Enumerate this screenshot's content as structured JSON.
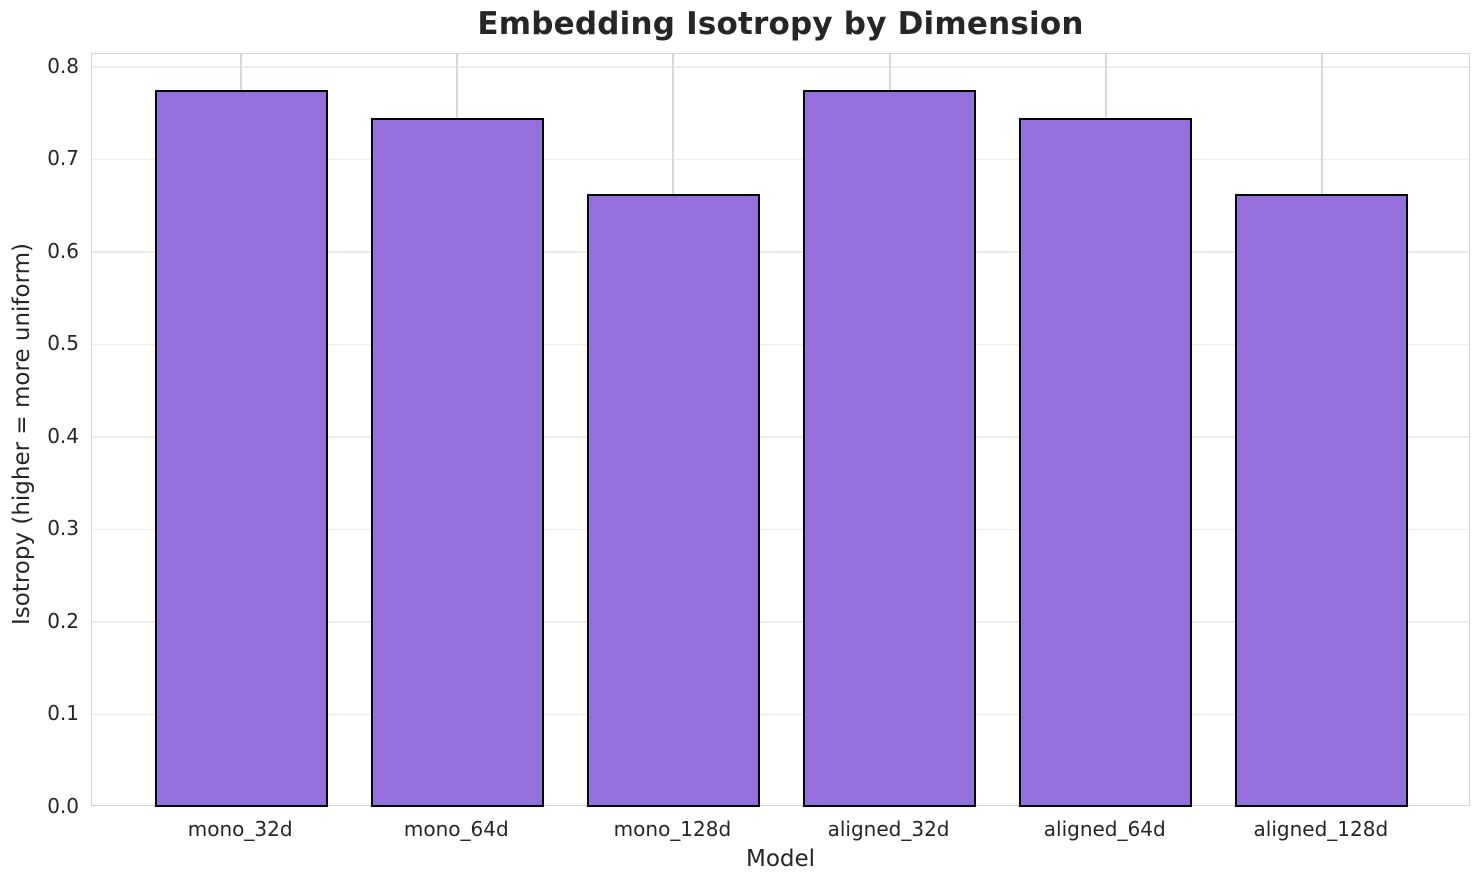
{
  "chart_data": {
    "type": "bar",
    "title": "Embedding Isotropy by Dimension",
    "xlabel": "Model",
    "ylabel": "Isotropy (higher = more uniform)",
    "categories": [
      "mono_32d",
      "mono_64d",
      "mono_128d",
      "aligned_32d",
      "aligned_64d",
      "aligned_128d"
    ],
    "values": [
      0.775,
      0.745,
      0.663,
      0.775,
      0.745,
      0.663
    ],
    "ylim": [
      0.0,
      0.814
    ],
    "yticks": [
      0.0,
      0.1,
      0.2,
      0.3,
      0.4,
      0.5,
      0.6,
      0.7,
      0.8
    ],
    "ytick_labels": [
      "0.0",
      "0.1",
      "0.2",
      "0.3",
      "0.4",
      "0.5",
      "0.6",
      "0.7",
      "0.8"
    ],
    "grid": "both",
    "legend_position": "none",
    "bar_color": "#9370DB",
    "bar_edge_color": "#000000",
    "grid_color_h": "#ececec",
    "grid_color_v": "#d9d9d9",
    "text_color": "#262626"
  }
}
